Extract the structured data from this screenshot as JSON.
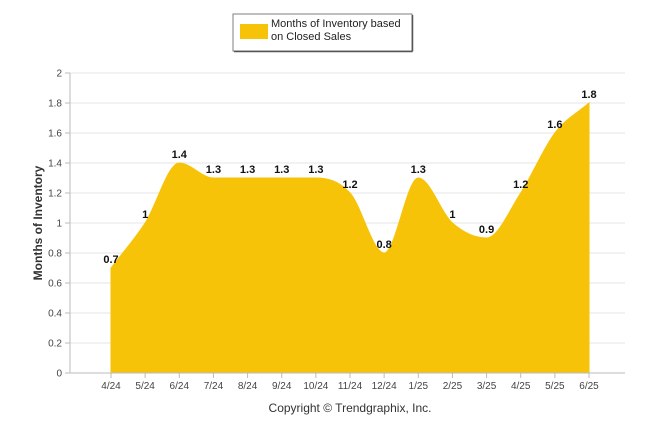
{
  "chart_data": {
    "type": "area",
    "ylabel": "Months of Inventory",
    "xlabel": "",
    "ylim": [
      0,
      2
    ],
    "yticks": [
      "0",
      "0.2",
      "0.4",
      "0.6",
      "0.8",
      "1",
      "1.2",
      "1.4",
      "1.6",
      "1.8",
      "2"
    ],
    "grid": true,
    "legend_position": "top-center",
    "categories": [
      "4/24",
      "5/24",
      "6/24",
      "7/24",
      "8/24",
      "9/24",
      "10/24",
      "11/24",
      "12/24",
      "1/25",
      "2/25",
      "3/25",
      "4/25",
      "5/25",
      "6/25"
    ],
    "series": [
      {
        "name": "Months of Inventory based on Closed Sales",
        "color": "#F7C308",
        "values": [
          0.7,
          1,
          1.4,
          1.3,
          1.3,
          1.3,
          1.3,
          1.2,
          0.8,
          1.3,
          1,
          0.9,
          1.2,
          1.6,
          1.8
        ],
        "value_labels": [
          "0.7",
          "1",
          "1.4",
          "1.3",
          "1.3",
          "1.3",
          "1.3",
          "1.2",
          "0.8",
          "1.3",
          "1",
          "0.9",
          "1.2",
          "1.6",
          "1.8"
        ]
      }
    ]
  },
  "legend": {
    "line1": "Months of Inventory based",
    "line2": "on Closed Sales"
  },
  "footer": {
    "copyright": "Copyright © Trendgraphix, Inc."
  }
}
